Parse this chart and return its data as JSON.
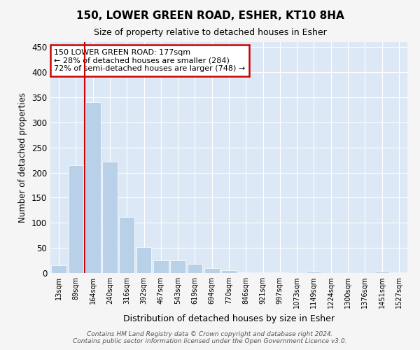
{
  "title": "150, LOWER GREEN ROAD, ESHER, KT10 8HA",
  "subtitle": "Size of property relative to detached houses in Esher",
  "xlabel": "Distribution of detached houses by size in Esher",
  "ylabel": "Number of detached properties",
  "categories": [
    "13sqm",
    "89sqm",
    "164sqm",
    "240sqm",
    "316sqm",
    "392sqm",
    "467sqm",
    "543sqm",
    "619sqm",
    "694sqm",
    "770sqm",
    "846sqm",
    "921sqm",
    "997sqm",
    "1073sqm",
    "1149sqm",
    "1224sqm",
    "1300sqm",
    "1376sqm",
    "1451sqm",
    "1527sqm"
  ],
  "values": [
    15,
    215,
    340,
    222,
    112,
    52,
    25,
    25,
    18,
    10,
    5,
    2,
    1,
    1,
    0,
    3,
    0,
    0,
    0,
    3,
    2
  ],
  "bar_color": "#b8d0e8",
  "vline_color": "#cc0000",
  "vline_pos": 1.5,
  "annotation_text": "150 LOWER GREEN ROAD: 177sqm\n← 28% of detached houses are smaller (284)\n72% of semi-detached houses are larger (748) →",
  "annotation_box_color": "#ffffff",
  "annotation_box_edge_color": "#cc0000",
  "ylim": [
    0,
    460
  ],
  "yticks": [
    0,
    50,
    100,
    150,
    200,
    250,
    300,
    350,
    400,
    450
  ],
  "background_color": "#dce8f5",
  "fig_background_color": "#f5f5f5",
  "grid_color": "#ffffff",
  "footer_line1": "Contains HM Land Registry data © Crown copyright and database right 2024.",
  "footer_line2": "Contains public sector information licensed under the Open Government Licence v3.0."
}
